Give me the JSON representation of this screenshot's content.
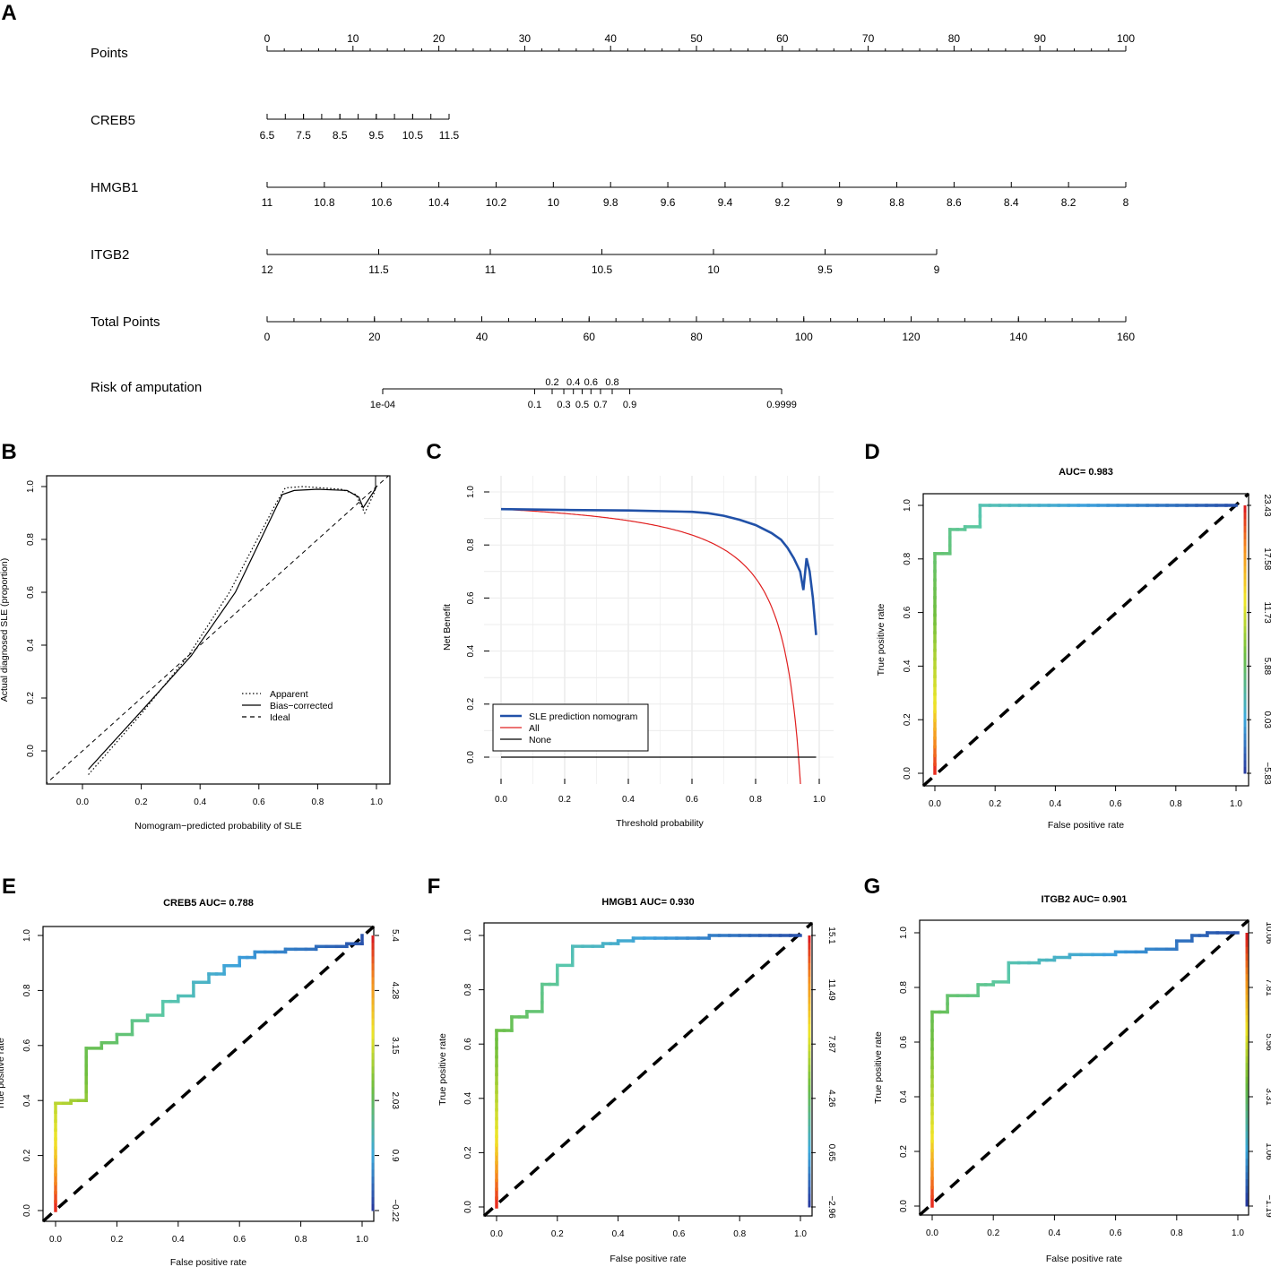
{
  "panel_labels": [
    "A",
    "B",
    "C",
    "D",
    "E",
    "F",
    "G"
  ],
  "chart_data": [
    {
      "type": "nomogram",
      "rows": [
        {
          "label": "Points",
          "scale": "linear",
          "ticks": [
            0,
            10,
            20,
            30,
            40,
            50,
            60,
            70,
            80,
            90,
            100
          ],
          "range": [
            0,
            100
          ],
          "minor": 2,
          "label_side": "above"
        },
        {
          "label": "CREB5",
          "scale": "linear",
          "ticks": [
            6.5,
            7.5,
            8.5,
            9.5,
            10.5,
            11.5
          ],
          "range": [
            6.5,
            11.5
          ],
          "minor_step": 0.5
        },
        {
          "label": "HMGB1",
          "scale": "linear",
          "ticks": [
            11,
            10.8,
            10.6,
            10.4,
            10.2,
            10,
            9.8,
            9.6,
            9.4,
            9.2,
            9,
            8.8,
            8.6,
            8.4,
            8.2,
            8
          ],
          "range": [
            11,
            8
          ]
        },
        {
          "label": "ITGB2",
          "scale": "linear",
          "ticks": [
            12,
            11.5,
            11,
            10.5,
            10,
            9.5,
            9
          ],
          "range": [
            12,
            9
          ]
        },
        {
          "label": "Total Points",
          "scale": "linear",
          "ticks": [
            0,
            20,
            40,
            60,
            80,
            100,
            120,
            140,
            160
          ],
          "range": [
            0,
            160
          ],
          "minor": 1
        },
        {
          "label": "Risk of amputation",
          "scale": "logit",
          "ticks_below": [
            "1e-04",
            "0.1",
            "0.3",
            "0.5",
            "0.7",
            "0.9",
            "0.9999"
          ],
          "ticks_above": [
            "0.2",
            "0.4",
            "0.6",
            "0.8"
          ],
          "range": [
            0.0001,
            0.9999
          ]
        }
      ]
    },
    {
      "type": "line",
      "xlabel": "Nomogram−predicted probability of SLE",
      "ylabel": "Actual diagnosed SLE (proportion)",
      "xticks": [
        "0.0",
        "0.2",
        "0.4",
        "0.6",
        "0.8",
        "1.0"
      ],
      "yticks": [
        "0.0",
        "0.2",
        "0.4",
        "0.6",
        "0.8",
        "1.0"
      ],
      "legend": [
        "Apparent",
        "Bias−corrected",
        "Ideal"
      ],
      "legend_position": "bottom-right",
      "series": [
        {
          "name": "Apparent",
          "x": [
            0.02,
            0.2,
            0.36,
            0.5,
            0.66,
            0.69,
            0.75,
            0.88,
            0.93,
            0.96,
            0.99,
            1.0
          ],
          "y": [
            -0.09,
            0.14,
            0.36,
            0.6,
            0.94,
            0.995,
            1.0,
            0.99,
            0.97,
            0.9,
            0.97,
            1.0
          ]
        },
        {
          "name": "Bias-corrected",
          "x": [
            0.02,
            0.2,
            0.37,
            0.52,
            0.68,
            0.72,
            0.8,
            0.9,
            0.94,
            0.955,
            0.99,
            1.0
          ],
          "y": [
            -0.07,
            0.15,
            0.36,
            0.6,
            0.97,
            0.985,
            0.99,
            0.985,
            0.96,
            0.92,
            0.98,
            1.0
          ]
        },
        {
          "name": "Ideal",
          "x": [
            -0.13,
            1.05
          ],
          "y": [
            -0.13,
            1.05
          ]
        }
      ]
    },
    {
      "type": "line",
      "xlabel": "Threshold probability",
      "ylabel": "Net Benefit",
      "xticks": [
        "0.0",
        "0.2",
        "0.4",
        "0.6",
        "0.8",
        "1.0"
      ],
      "yticks": [
        "0.0",
        "0.2",
        "0.4",
        "0.6",
        "0.8",
        "1.0"
      ],
      "legend": [
        "SLE prediction nomogram",
        "All",
        "None"
      ],
      "legend_position": "bottom-left",
      "prevalence": 0.935,
      "series": [
        {
          "name": "SLE prediction nomogram",
          "color": "#2151a8",
          "x": [
            0,
            0.2,
            0.4,
            0.6,
            0.65,
            0.7,
            0.75,
            0.8,
            0.85,
            0.88,
            0.9,
            0.92,
            0.94,
            0.95,
            0.96,
            0.97,
            0.98,
            0.99
          ],
          "y": [
            0.935,
            0.932,
            0.93,
            0.925,
            0.92,
            0.91,
            0.895,
            0.875,
            0.845,
            0.82,
            0.79,
            0.75,
            0.7,
            0.63,
            0.75,
            0.7,
            0.6,
            0.46
          ]
        },
        {
          "name": "All",
          "color": "#e02020",
          "formula": "prevalence - (1-prevalence)*pt/(1-pt)"
        },
        {
          "name": "None",
          "color": "#000000",
          "x": [
            0,
            0.99
          ],
          "y": [
            0,
            0
          ]
        }
      ]
    },
    {
      "type": "roc",
      "title": "AUC= 0.983",
      "xlabel": "False positive rate",
      "ylabel": "True positive rate",
      "xticks": [
        "0.0",
        "0.2",
        "0.4",
        "0.6",
        "0.8",
        "1.0"
      ],
      "yticks": [
        "0.0",
        "0.2",
        "0.4",
        "0.6",
        "0.8",
        "1.0"
      ],
      "colorbar": [
        "−5.83",
        "0.03",
        "5.88",
        "11.73",
        "17.58",
        "23.43"
      ],
      "fpr": [
        0,
        0,
        0.05,
        0.05,
        0.1,
        0.1,
        0.15,
        0.15,
        1
      ],
      "tpr": [
        0,
        0.82,
        0.82,
        0.91,
        0.91,
        0.92,
        0.92,
        1.0,
        1.0
      ]
    },
    {
      "type": "roc",
      "title": "CREB5  AUC= 0.788",
      "xlabel": "False positive rate",
      "ylabel": "True positive rate",
      "xticks": [
        "0.0",
        "0.2",
        "0.4",
        "0.6",
        "0.8",
        "1.0"
      ],
      "yticks": [
        "0.0",
        "0.2",
        "0.4",
        "0.6",
        "0.8",
        "1.0"
      ],
      "colorbar": [
        "−0.22",
        "0.9",
        "2.03",
        "3.15",
        "4.28",
        "5.4"
      ],
      "fpr": [
        0,
        0,
        0.05,
        0.05,
        0.1,
        0.1,
        0.15,
        0.15,
        0.2,
        0.2,
        0.25,
        0.25,
        0.3,
        0.3,
        0.35,
        0.35,
        0.4,
        0.4,
        0.45,
        0.45,
        0.5,
        0.5,
        0.55,
        0.55,
        0.6,
        0.6,
        0.65,
        0.65,
        0.75,
        0.75,
        0.85,
        0.85,
        0.95,
        0.95,
        1,
        1
      ],
      "tpr": [
        0,
        0.39,
        0.39,
        0.4,
        0.4,
        0.59,
        0.59,
        0.61,
        0.61,
        0.64,
        0.64,
        0.69,
        0.69,
        0.71,
        0.71,
        0.76,
        0.76,
        0.78,
        0.78,
        0.83,
        0.83,
        0.86,
        0.86,
        0.89,
        0.89,
        0.92,
        0.92,
        0.94,
        0.94,
        0.95,
        0.95,
        0.96,
        0.96,
        0.97,
        0.97,
        1.0
      ]
    },
    {
      "type": "roc",
      "title": "HMGB1  AUC= 0.930",
      "xlabel": "False positive rate",
      "ylabel": "True positive rate",
      "xticks": [
        "0.0",
        "0.2",
        "0.4",
        "0.6",
        "0.8",
        "1.0"
      ],
      "yticks": [
        "0.0",
        "0.2",
        "0.4",
        "0.6",
        "0.8",
        "1.0"
      ],
      "colorbar": [
        "−2.96",
        "0.65",
        "4.26",
        "7.87",
        "11.49",
        "15.1"
      ],
      "fpr": [
        0,
        0,
        0.05,
        0.05,
        0.1,
        0.1,
        0.15,
        0.15,
        0.2,
        0.2,
        0.25,
        0.25,
        0.35,
        0.35,
        0.4,
        0.4,
        0.45,
        0.45,
        0.7,
        0.7,
        1
      ],
      "tpr": [
        0,
        0.65,
        0.65,
        0.7,
        0.7,
        0.72,
        0.72,
        0.82,
        0.82,
        0.89,
        0.89,
        0.96,
        0.96,
        0.97,
        0.97,
        0.98,
        0.98,
        0.99,
        0.99,
        1.0,
        1.0
      ]
    },
    {
      "type": "roc",
      "title": "ITGB2  AUC= 0.901",
      "xlabel": "False positive rate",
      "ylabel": "True positive rate",
      "xticks": [
        "0.0",
        "0.2",
        "0.4",
        "0.6",
        "0.8",
        "1.0"
      ],
      "yticks": [
        "0.0",
        "0.2",
        "0.4",
        "0.6",
        "0.8",
        "1.0"
      ],
      "colorbar": [
        "−1.19",
        "1.06",
        "3.31",
        "5.56",
        "7.81",
        "10.06"
      ],
      "fpr": [
        0,
        0,
        0.05,
        0.05,
        0.15,
        0.15,
        0.2,
        0.2,
        0.25,
        0.25,
        0.35,
        0.35,
        0.4,
        0.4,
        0.45,
        0.45,
        0.6,
        0.6,
        0.7,
        0.7,
        0.8,
        0.8,
        0.85,
        0.85,
        0.9,
        0.9,
        1
      ],
      "tpr": [
        0,
        0.71,
        0.71,
        0.77,
        0.77,
        0.81,
        0.81,
        0.82,
        0.82,
        0.89,
        0.89,
        0.9,
        0.9,
        0.91,
        0.91,
        0.92,
        0.92,
        0.93,
        0.93,
        0.94,
        0.94,
        0.97,
        0.97,
        0.99,
        0.99,
        1.0,
        1.0
      ]
    }
  ]
}
